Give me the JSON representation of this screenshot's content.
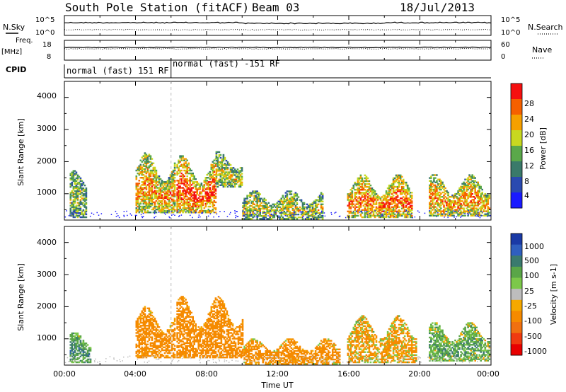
{
  "header": {
    "station": "South Pole Station (fitACF)",
    "beam": "Beam 03",
    "date": "18/Jul/2013"
  },
  "colors": {
    "velocity_pos": [
      "#1a3aa6",
      "#2f5fbf",
      "#3a7a6e",
      "#5aa648",
      "#7cc84a"
    ],
    "velocity_neg": [
      "#bdbdbd",
      "#f5a800",
      "#f58a00",
      "#f07010",
      "#f03a10",
      "#e80000"
    ],
    "power": [
      "#1a1aff",
      "#2a4ab0",
      "#3a7a6a",
      "#5aa84a",
      "#c8d820",
      "#f5a000",
      "#f56000",
      "#f51010"
    ]
  },
  "chart_data": [
    {
      "type": "line",
      "name": "noise-panel",
      "left_label": "N.Sky",
      "left_ticks": [
        "10^5",
        "10^0"
      ],
      "right_label": "N.Search",
      "right_ticks": [
        "10^5",
        "10^0"
      ]
    },
    {
      "type": "line",
      "name": "freq-panel",
      "left_label_top": "Freq.",
      "left_label_unit": "[MHz]",
      "left_ticks": [
        "18",
        "8"
      ],
      "right_label": "Nave",
      "right_ticks": [
        "60",
        "0"
      ]
    },
    {
      "type": "table",
      "name": "cpid-panel",
      "label": "CPID",
      "segments": [
        {
          "start_hour": 0,
          "end_hour": 6,
          "text": "normal (fast) 151 RF"
        },
        {
          "start_hour": 6,
          "end_hour": 24,
          "text": "normal (fast) -151 RF"
        }
      ]
    },
    {
      "type": "heatmap",
      "name": "power-panel",
      "ylabel": "Slant Range [km]",
      "yticks": [
        "4000",
        "3000",
        "2000",
        "1000"
      ],
      "ylim": [
        180,
        4500
      ],
      "colorbar_label": "Power [dB]",
      "colorbar_ticks": [
        "28",
        "24",
        "20",
        "16",
        "12",
        "8",
        "4"
      ],
      "colorbar_range": [
        0,
        32
      ],
      "echo_regions": [
        {
          "t0": 0.3,
          "t1": 1.2,
          "r0": 250,
          "r1": 1700,
          "lvl": 0.3
        },
        {
          "t0": 4.0,
          "t1": 6.2,
          "r0": 400,
          "r1": 2300,
          "lvl": 0.6
        },
        {
          "t0": 6.3,
          "t1": 8.5,
          "r0": 400,
          "r1": 2200,
          "lvl": 0.8
        },
        {
          "t0": 8.5,
          "t1": 10.0,
          "r0": 1200,
          "r1": 2300,
          "lvl": 0.4
        },
        {
          "t0": 10.0,
          "t1": 14.5,
          "r0": 200,
          "r1": 1100,
          "lvl": 0.4
        },
        {
          "t0": 15.9,
          "t1": 19.5,
          "r0": 250,
          "r1": 1600,
          "lvl": 0.7
        },
        {
          "t0": 20.5,
          "t1": 23.9,
          "r0": 300,
          "r1": 1600,
          "lvl": 0.6
        }
      ]
    },
    {
      "type": "heatmap",
      "name": "velocity-panel",
      "ylabel": "Slant Range [km]",
      "yticks": [
        "4000",
        "3000",
        "2000",
        "1000"
      ],
      "ylim": [
        180,
        4500
      ],
      "xlabel": "Time UT",
      "xticks": [
        "00:00",
        "04:00",
        "08:00",
        "12:00",
        "16:00",
        "20:00",
        "00:00"
      ],
      "xlim": [
        0,
        24
      ],
      "colorbar_label": "Velocity [m s-1]",
      "colorbar_ticks": [
        "1000",
        "500",
        "100",
        "25",
        "-25",
        "-100",
        "-500",
        "-1000"
      ],
      "echo_regions": [
        {
          "t0": 0.3,
          "t1": 1.5,
          "r0": 250,
          "r1": 1200,
          "lvl": 0.5
        },
        {
          "t0": 4.0,
          "t1": 6.2,
          "r0": 400,
          "r1": 2000,
          "lvl": -0.5
        },
        {
          "t0": 6.3,
          "t1": 10.0,
          "r0": 400,
          "r1": 2300,
          "lvl": -0.6
        },
        {
          "t0": 10.0,
          "t1": 15.5,
          "r0": 200,
          "r1": 1000,
          "lvl": -0.4
        },
        {
          "t0": 15.9,
          "t1": 19.8,
          "r0": 250,
          "r1": 1700,
          "lvl": -0.2
        },
        {
          "t0": 20.5,
          "t1": 23.9,
          "r0": 300,
          "r1": 1500,
          "lvl": 0.3
        }
      ]
    }
  ]
}
